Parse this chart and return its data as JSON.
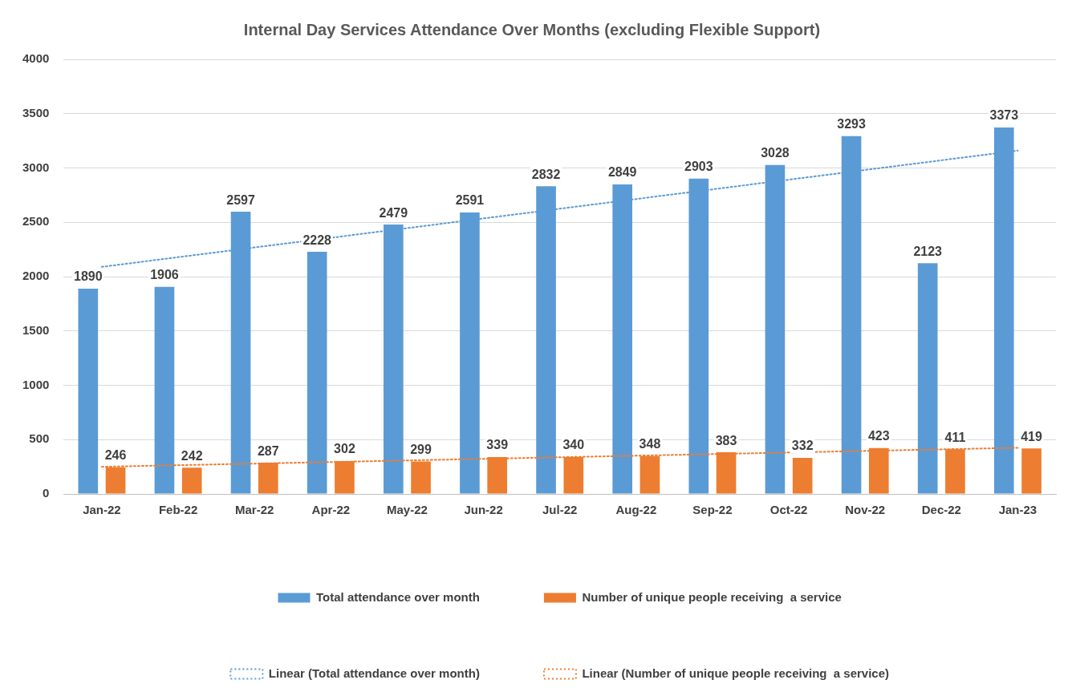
{
  "chart_data": {
    "type": "bar",
    "title": "Internal Day Services Attendance Over Months (excluding Flexible Support)",
    "categories": [
      "Jan-22",
      "Feb-22",
      "Mar-22",
      "Apr-22",
      "May-22",
      "Jun-22",
      "Jul-22",
      "Aug-22",
      "Sep-22",
      "Oct-22",
      "Nov-22",
      "Dec-22",
      "Jan-23"
    ],
    "series": [
      {
        "name": "Total attendance over month",
        "color": "#5b9bd5",
        "values": [
          1890,
          1906,
          2597,
          2228,
          2479,
          2591,
          2832,
          2849,
          2903,
          3028,
          3293,
          2123,
          3373
        ],
        "value_labels": [
          "1890",
          "1906",
          "2597",
          "2228",
          "2479",
          "2591",
          "2832",
          "2849",
          "2903",
          "3028",
          "3293",
          "2123",
          "3373"
        ]
      },
      {
        "name": "Number of unique people receiving  a service",
        "color": "#ed7d31",
        "values": [
          246,
          242,
          287,
          302,
          299,
          339,
          340,
          348,
          383,
          332,
          423,
          411,
          419
        ],
        "value_labels": [
          "246",
          "242",
          "287",
          "302",
          "299",
          "339",
          "340",
          "348",
          "383",
          "332",
          "423",
          "411",
          "419"
        ]
      },
      {
        "name": "Linear (Total attendance over month)",
        "type": "line",
        "line_style": "dotted",
        "color": "#5b9bd5",
        "x": [
          "Jan-22",
          "Jan-23"
        ],
        "values": [
          2090,
          3160
        ]
      },
      {
        "name": "Linear (Number of unique people receiving  a service)",
        "type": "line",
        "line_style": "dotted",
        "color": "#ed7d31",
        "x": [
          "Jan-22",
          "Jan-23"
        ],
        "values": [
          250,
          425
        ]
      }
    ],
    "ylim": [
      0,
      4000
    ],
    "yticks": [
      0,
      500,
      1000,
      1500,
      2000,
      2500,
      3000,
      3500,
      4000
    ],
    "grid": "y",
    "legend": "bottom",
    "marker": "none"
  }
}
